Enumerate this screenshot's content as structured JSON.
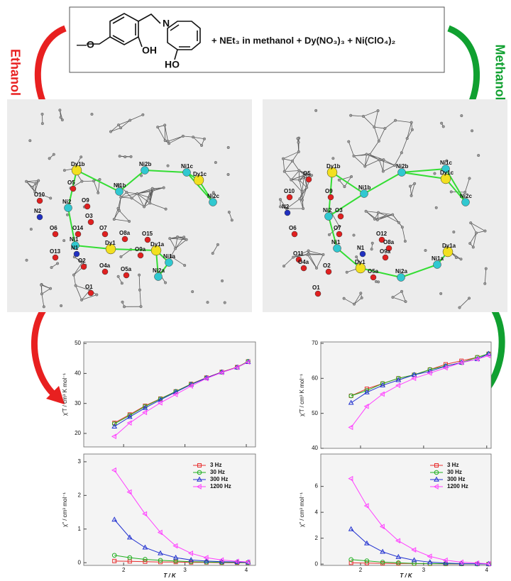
{
  "scheme": {
    "labels": [
      "N",
      "OH",
      "HO",
      "—O"
    ],
    "reagents": "+ NEt₃ in methanol + Dy(NO₃)₃ + Ni(ClO₄)₂"
  },
  "solvents": [
    "Ethanol",
    "Methanol"
  ],
  "structures": [
    {
      "atoms": [
        "Dy1b",
        "Ni2b",
        "Ni1c",
        "Dy1c",
        "O5",
        "Ni1b",
        "Ni2c",
        "O10",
        "Ni2",
        "O9",
        "N2",
        "O3",
        "O6",
        "O14",
        "O7",
        "O8a",
        "O15",
        "Dy1a",
        "Ni1",
        "N1",
        "Dy1",
        "O13",
        "O2",
        "O9a",
        "Ni1a",
        "O4a",
        "O5a",
        "Ni2a",
        "O1"
      ]
    },
    {
      "atoms": [
        "Dy1b",
        "Ni2b",
        "Ni1c",
        "Dy1c",
        "O5",
        "Ni1b",
        "O9",
        "Ni2c",
        "O10",
        "N2",
        "Ni2",
        "O3",
        "O6",
        "O7",
        "O12",
        "O8a",
        "Ni1",
        "N1",
        "O9a",
        "Dy1a",
        "O11",
        "Dy1",
        "O4a",
        "O2",
        "O5a",
        "Ni2a",
        "Ni1a",
        "O1"
      ]
    }
  ],
  "chart_data": [
    {
      "type": "line",
      "y_label": "χ′T / cm³ K mol⁻¹",
      "x": [
        1.85,
        2.1,
        2.35,
        2.6,
        2.85,
        3.1,
        3.35,
        3.6,
        3.85,
        4.03
      ],
      "xlim": [
        1.35,
        4.15
      ],
      "xticks": [
        2,
        3,
        4
      ],
      "ylim": [
        15.5,
        50.5
      ],
      "yticks": [
        20,
        30,
        40,
        50
      ],
      "series": [
        {
          "color": "#e83030",
          "marker": "square",
          "values": [
            23.5,
            26.3,
            29.2,
            31.6,
            34,
            36.5,
            38.6,
            40.5,
            42.1,
            44
          ]
        },
        {
          "color": "#20b020",
          "marker": "circle",
          "values": [
            23.2,
            26,
            29,
            31.5,
            34,
            36.4,
            38.5,
            40.4,
            42,
            44
          ]
        },
        {
          "color": "#2030d0",
          "marker": "triangle",
          "values": [
            22.3,
            25.5,
            28.5,
            31.2,
            33.8,
            36.3,
            38.5,
            40.4,
            42,
            43.8
          ]
        },
        {
          "color": "#ff40ff",
          "marker": "triangle-left",
          "values": [
            19,
            23.5,
            27,
            30.2,
            33,
            35.8,
            38.3,
            40.3,
            42,
            43.8
          ]
        }
      ]
    },
    {
      "type": "line",
      "y_label": "χ″ / cm³ mol⁻¹",
      "x_label": "T / K",
      "x": [
        1.85,
        2.1,
        2.35,
        2.6,
        2.85,
        3.1,
        3.35,
        3.6,
        3.85,
        4.03
      ],
      "xlim": [
        1.35,
        4.15
      ],
      "xticks": [
        2,
        3,
        4
      ],
      "ylim": [
        -0.08,
        3.23
      ],
      "yticks": [
        0,
        1,
        2,
        3
      ],
      "series": [
        {
          "name": "3 Hz",
          "color": "#e83030",
          "marker": "square",
          "values": [
            0.05,
            0.04,
            0.03,
            0.02,
            0.02,
            0.01,
            0.01,
            0,
            0,
            0
          ]
        },
        {
          "name": "30 Hz",
          "color": "#20b020",
          "marker": "circle",
          "values": [
            0.22,
            0.15,
            0.1,
            0.07,
            0.05,
            0.03,
            0.02,
            0.01,
            0.01,
            0
          ]
        },
        {
          "name": "300 Hz",
          "color": "#2030d0",
          "marker": "triangle",
          "values": [
            1.28,
            0.75,
            0.45,
            0.28,
            0.15,
            0.08,
            0.05,
            0.03,
            0.02,
            0.01
          ]
        },
        {
          "name": "1200 Hz",
          "color": "#ff40ff",
          "marker": "triangle-left",
          "values": [
            2.75,
            2.1,
            1.45,
            0.9,
            0.5,
            0.28,
            0.15,
            0.08,
            0.04,
            0.02
          ]
        }
      ]
    },
    {
      "type": "line",
      "y_label": "χ′T / cm³ K mol⁻¹",
      "x": [
        1.85,
        2.1,
        2.35,
        2.6,
        2.85,
        3.1,
        3.35,
        3.6,
        3.85,
        4.03
      ],
      "xlim": [
        1.37,
        4.07
      ],
      "xticks": [
        2,
        3,
        4
      ],
      "ylim": [
        40,
        70.4
      ],
      "yticks": [
        40,
        50,
        60,
        70
      ],
      "series": [
        {
          "color": "#e83030",
          "marker": "square",
          "values": [
            55,
            57,
            58.5,
            60,
            61,
            62.5,
            64,
            65,
            66,
            67
          ]
        },
        {
          "color": "#20b020",
          "marker": "circle",
          "values": [
            55,
            56.5,
            58.5,
            60,
            61,
            62.5,
            63.5,
            64.5,
            66,
            67
          ]
        },
        {
          "color": "#2030d0",
          "marker": "triangle",
          "values": [
            53,
            56,
            58,
            59.5,
            61,
            62,
            63.5,
            64.5,
            65.5,
            67
          ]
        },
        {
          "color": "#ff40ff",
          "marker": "triangle-left",
          "values": [
            46,
            52,
            55.5,
            58,
            60,
            61.5,
            63,
            64.5,
            65.5,
            66.5
          ]
        }
      ]
    },
    {
      "type": "line",
      "y_label": "χ″ / cm³ mol⁻¹",
      "x_label": "T / K",
      "x": [
        1.85,
        2.1,
        2.35,
        2.6,
        2.85,
        3.1,
        3.35,
        3.6,
        3.85,
        4.03
      ],
      "xlim": [
        1.37,
        4.07
      ],
      "xticks": [
        2,
        3,
        4
      ],
      "ylim": [
        -0.1,
        8.5
      ],
      "yticks": [
        0,
        2,
        4,
        6
      ],
      "series": [
        {
          "name": "3 Hz",
          "color": "#e83030",
          "marker": "square",
          "values": [
            0.1,
            0.08,
            0.06,
            0.05,
            0.04,
            0.03,
            0.02,
            0.01,
            0.01,
            0
          ]
        },
        {
          "name": "30 Hz",
          "color": "#20b020",
          "marker": "circle",
          "values": [
            0.35,
            0.25,
            0.15,
            0.1,
            0.05,
            0.04,
            0.03,
            0.02,
            0.01,
            0.01
          ]
        },
        {
          "name": "300 Hz",
          "color": "#2030d0",
          "marker": "triangle",
          "values": [
            2.7,
            1.6,
            0.95,
            0.55,
            0.3,
            0.15,
            0.08,
            0.04,
            0.02,
            0.01
          ]
        },
        {
          "name": "1200 Hz",
          "color": "#ff40ff",
          "marker": "triangle-left",
          "values": [
            6.6,
            4.5,
            2.9,
            1.8,
            1.1,
            0.6,
            0.3,
            0.15,
            0.08,
            0.03
          ]
        }
      ]
    }
  ]
}
